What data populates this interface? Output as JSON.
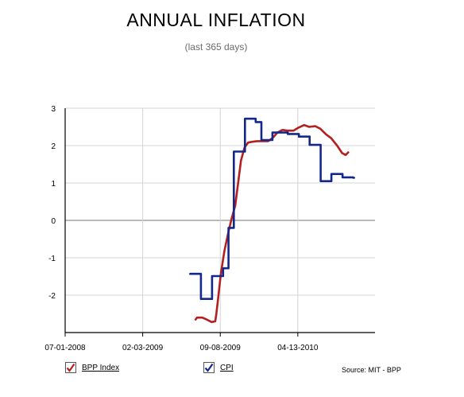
{
  "chart_data": {
    "type": "line",
    "title": "ANNUAL INFLATION",
    "subtitle": "(last 365 days)",
    "xlabel": "",
    "ylabel": "",
    "x_tick_labels": [
      "07-01-2008",
      "02-03-2009",
      "09-08-2009",
      "04-13-2010"
    ],
    "x_range": [
      "2008-07-01",
      "2010-11-15"
    ],
    "y_ticks": [
      3,
      2,
      1,
      0,
      -1,
      -2
    ],
    "ylim": [
      -3,
      3
    ],
    "grid": true,
    "legend": "bottom",
    "series": [
      {
        "name": "BPP Index",
        "color": "#b41f1f",
        "points": [
          [
            "2009-07-01",
            -2.65
          ],
          [
            "2009-07-05",
            -2.6
          ],
          [
            "2009-07-20",
            -2.6
          ],
          [
            "2009-08-01",
            -2.65
          ],
          [
            "2009-08-15",
            -2.72
          ],
          [
            "2009-08-25",
            -2.7
          ],
          [
            "2009-08-28",
            -2.5
          ],
          [
            "2009-09-03",
            -2.0
          ],
          [
            "2009-09-10",
            -1.4
          ],
          [
            "2009-09-20",
            -0.8
          ],
          [
            "2009-10-01",
            -0.3
          ],
          [
            "2009-10-10",
            0.05
          ],
          [
            "2009-10-20",
            0.4
          ],
          [
            "2009-10-28",
            1.0
          ],
          [
            "2009-11-05",
            1.6
          ],
          [
            "2009-11-15",
            1.95
          ],
          [
            "2009-11-25",
            2.08
          ],
          [
            "2009-12-05",
            2.1
          ],
          [
            "2009-12-20",
            2.12
          ],
          [
            "2010-01-05",
            2.12
          ],
          [
            "2010-01-20",
            2.12
          ],
          [
            "2010-02-01",
            2.2
          ],
          [
            "2010-02-15",
            2.35
          ],
          [
            "2010-03-01",
            2.42
          ],
          [
            "2010-03-15",
            2.4
          ],
          [
            "2010-04-01",
            2.4
          ],
          [
            "2010-04-15",
            2.48
          ],
          [
            "2010-05-01",
            2.55
          ],
          [
            "2010-05-15",
            2.5
          ],
          [
            "2010-06-01",
            2.52
          ],
          [
            "2010-06-15",
            2.45
          ],
          [
            "2010-07-01",
            2.3
          ],
          [
            "2010-07-15",
            2.2
          ],
          [
            "2010-08-01",
            2.0
          ],
          [
            "2010-08-15",
            1.8
          ],
          [
            "2010-08-25",
            1.75
          ],
          [
            "2010-09-01",
            1.82
          ]
        ]
      },
      {
        "name": "CPI",
        "color": "#14288c",
        "step": true,
        "points": [
          [
            "2009-06-16",
            -1.43
          ],
          [
            "2009-07-16",
            -2.1
          ],
          [
            "2009-08-16",
            -1.49
          ],
          [
            "2009-09-16",
            -1.28
          ],
          [
            "2009-10-01",
            -0.2
          ],
          [
            "2009-10-16",
            1.84
          ],
          [
            "2009-11-16",
            2.72
          ],
          [
            "2009-12-16",
            2.63
          ],
          [
            "2010-01-01",
            2.15
          ],
          [
            "2010-02-01",
            2.35
          ],
          [
            "2010-03-16",
            2.31
          ],
          [
            "2010-04-16",
            2.24
          ],
          [
            "2010-05-16",
            2.02
          ],
          [
            "2010-06-16",
            1.05
          ],
          [
            "2010-07-16",
            1.24
          ],
          [
            "2010-08-16",
            1.15
          ],
          [
            "2010-09-15",
            1.14
          ]
        ]
      }
    ]
  },
  "legend": [
    {
      "label": "BPP Index",
      "color": "#b41f1f",
      "checked": true
    },
    {
      "label": "CPI",
      "color": "#14288c",
      "checked": true
    }
  ],
  "source": "Source: MIT - BPP"
}
